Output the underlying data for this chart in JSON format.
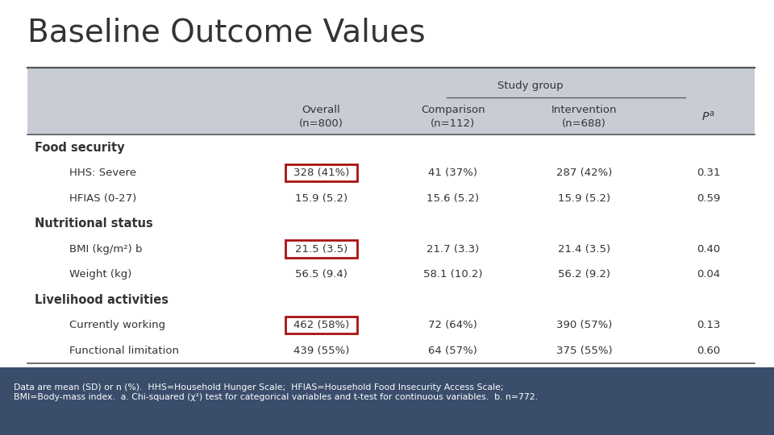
{
  "title": "Baseline Outcome Values",
  "background_color": "#ffffff",
  "header_bg": "#c8ccd4",
  "footer_bg": "#3a4d6b",
  "footer_text_color": "#ffffff",
  "footer_text": "Data are mean (SD) or n (%).  HHS=Household Hunger Scale;  HFIAS=Household Food Insecurity Access Scale;\nBMI=Body-mass index.  a. Chi-squared (χ²) test for categorical variables and t-test for continuous variables.  b. n=772.",
  "study_group_label": "Study group",
  "col1_label1": "Overall",
  "col1_label2": "(n=800)",
  "col2_label1": "Comparison",
  "col2_label2": "(n=112)",
  "col3_label1": "Intervention",
  "col3_label2": "(n=688)",
  "col4_label": "Pa",
  "rows": [
    {
      "label": "Food security",
      "bold": true,
      "indent": 0,
      "overall": "",
      "comparison": "",
      "intervention": "",
      "p": "",
      "box": false
    },
    {
      "label": "HHS: Severe",
      "bold": false,
      "indent": 1,
      "overall": "328 (41%)",
      "comparison": "41 (37%)",
      "intervention": "287 (42%)",
      "p": "0.31",
      "box": true
    },
    {
      "label": "HFIAS (0-27)",
      "bold": false,
      "indent": 1,
      "overall": "15.9 (5.2)",
      "comparison": "15.6 (5.2)",
      "intervention": "15.9 (5.2)",
      "p": "0.59",
      "box": false
    },
    {
      "label": "Nutritional status",
      "bold": true,
      "indent": 0,
      "overall": "",
      "comparison": "",
      "intervention": "",
      "p": "",
      "box": false
    },
    {
      "label": "BMI (kg/m²) b",
      "bold": false,
      "indent": 1,
      "overall": "21.5 (3.5)",
      "comparison": "21.7 (3.3)",
      "intervention": "21.4 (3.5)",
      "p": "0.40",
      "box": true
    },
    {
      "label": "Weight (kg)",
      "bold": false,
      "indent": 1,
      "overall": "56.5 (9.4)",
      "comparison": "58.1 (10.2)",
      "intervention": "56.2 (9.2)",
      "p": "0.04",
      "box": false
    },
    {
      "label": "Livelihood activities",
      "bold": true,
      "indent": 0,
      "overall": "",
      "comparison": "",
      "intervention": "",
      "p": "",
      "box": false
    },
    {
      "label": "Currently working",
      "bold": false,
      "indent": 1,
      "overall": "462 (58%)",
      "comparison": "72 (64%)",
      "intervention": "390 (57%)",
      "p": "0.13",
      "box": true
    },
    {
      "label": "Functional limitation",
      "bold": false,
      "indent": 1,
      "overall": "439 (55%)",
      "comparison": "64 (57%)",
      "intervention": "375 (55%)",
      "p": "0.60",
      "box": false
    }
  ],
  "title_color": "#333333",
  "text_color": "#333333",
  "line_color": "#555555",
  "box_color": "#aa1111"
}
